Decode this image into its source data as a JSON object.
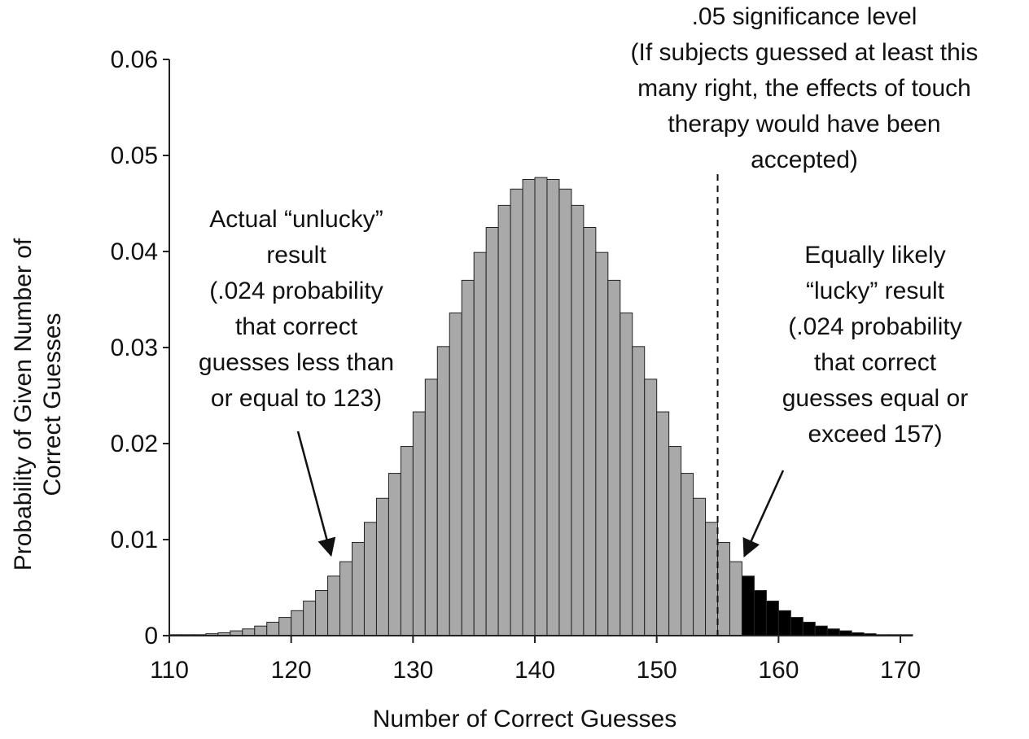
{
  "chart_data": {
    "type": "bar",
    "xlabel": "Number of Correct Guesses",
    "ylabel_lines": [
      "Probability of Given Number of",
      "Correct Guesses"
    ],
    "xlim": [
      110,
      171
    ],
    "ylim": [
      0,
      0.06
    ],
    "xticks": [
      110,
      120,
      130,
      140,
      150,
      160,
      170
    ],
    "yticks": [
      "0",
      "0.01",
      "0.02",
      "0.03",
      "0.04",
      "0.05",
      "0.06"
    ],
    "grid": false,
    "series": [
      {
        "x": [
          110,
          111,
          112,
          113,
          114,
          115,
          116,
          117,
          118,
          119,
          120,
          121,
          122,
          123,
          124,
          125,
          126,
          127,
          128,
          129,
          130,
          131,
          132,
          133,
          134,
          135,
          136,
          137,
          138,
          139,
          140,
          141,
          142,
          143,
          144,
          145,
          146,
          147,
          148,
          149,
          150,
          151,
          152,
          153,
          154,
          155,
          156,
          157,
          158,
          159,
          160,
          161,
          162,
          163,
          164,
          165,
          166,
          167,
          168,
          169,
          170
        ],
        "values": [
          0.0001,
          0.0001,
          0.0001,
          0.0002,
          0.0003,
          0.0005,
          0.0007,
          0.001,
          0.0014,
          0.0019,
          0.0026,
          0.0036,
          0.0047,
          0.0062,
          0.0077,
          0.0097,
          0.0118,
          0.0143,
          0.0169,
          0.0197,
          0.0233,
          0.0267,
          0.0301,
          0.0336,
          0.037,
          0.0399,
          0.0425,
          0.0448,
          0.0465,
          0.0475,
          0.0477,
          0.0475,
          0.0465,
          0.0448,
          0.0425,
          0.0399,
          0.037,
          0.0336,
          0.0301,
          0.0267,
          0.0233,
          0.0197,
          0.0169,
          0.0143,
          0.0118,
          0.0097,
          0.0077,
          0.0062,
          0.0047,
          0.0036,
          0.0026,
          0.0019,
          0.0014,
          0.001,
          0.0007,
          0.0005,
          0.0003,
          0.0002,
          0.0001,
          0.0001,
          0.0001
        ],
        "highlight_from": 157
      }
    ],
    "colors": {
      "bar": "#a9a9a9",
      "highlight": "#000000",
      "stroke": "#222222"
    },
    "significance_line": {
      "x": 155
    },
    "annotations": [
      {
        "lines": [
          ".05 significance level",
          "(If subjects guessed at least this",
          "many right, the effects of touch",
          "therapy would have been",
          "accepted)"
        ]
      },
      {
        "lines": [
          "Actual “unlucky”",
          "result",
          "(.024 probability",
          "that correct",
          "guesses less than",
          "or equal to 123)"
        ],
        "arrow_to_x": 123
      },
      {
        "lines": [
          "Equally likely",
          "“lucky” result",
          "(.024 probability",
          "that correct",
          "guesses equal or",
          "exceed 157)"
        ],
        "arrow_to_x": 157
      }
    ]
  }
}
